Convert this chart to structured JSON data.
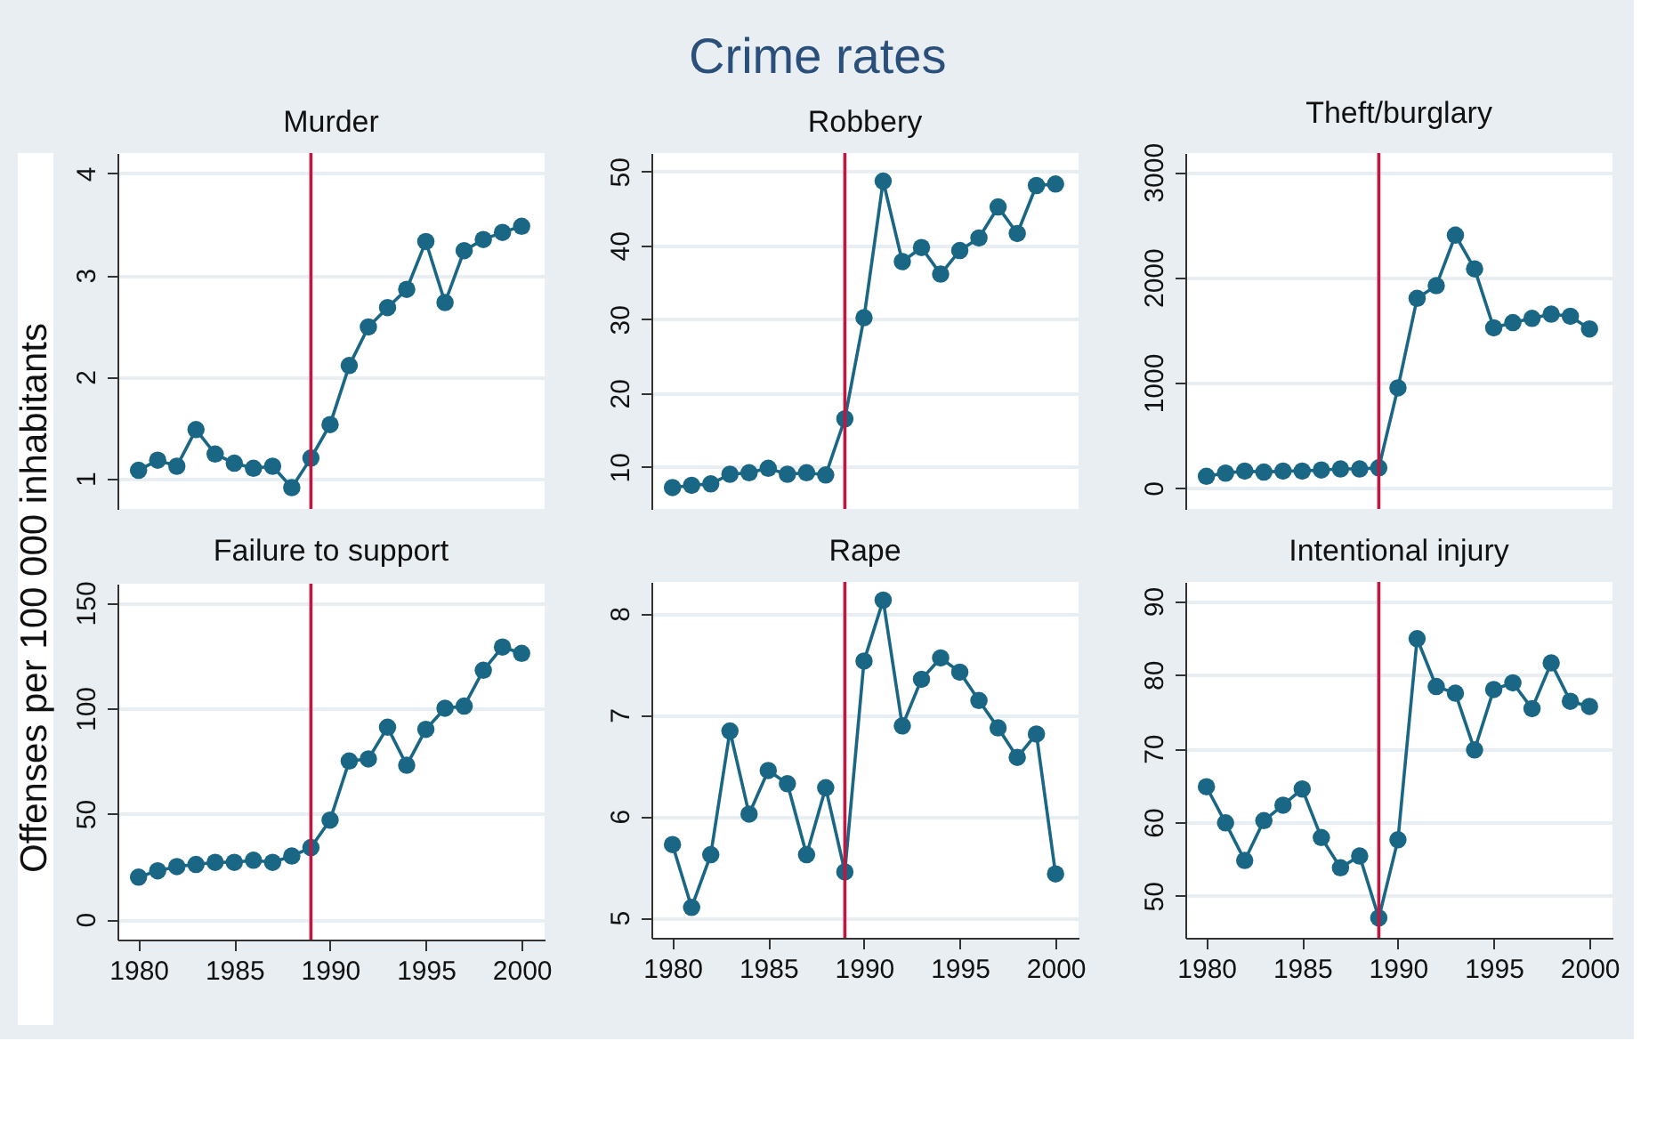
{
  "chart_data": [
    {
      "type": "line",
      "title": "Murder",
      "annotations": [
        "Crime rates"
      ],
      "ylabel": "Offenses per 100 000 inhabitants",
      "x": [
        1980,
        1981,
        1982,
        1983,
        1984,
        1985,
        1986,
        1987,
        1988,
        1989,
        1990,
        1991,
        1992,
        1993,
        1994,
        1995,
        1996,
        1997,
        1998,
        1999,
        2000
      ],
      "series": [
        {
          "color": "#1a6685",
          "values": [
            1.08,
            1.18,
            1.12,
            1.48,
            1.24,
            1.15,
            1.1,
            1.12,
            0.91,
            1.2,
            1.53,
            2.11,
            2.49,
            2.68,
            2.86,
            3.33,
            2.73,
            3.24,
            3.35,
            3.42,
            3.48
          ]
        }
      ],
      "xlim": [
        1978.9,
        2001.2
      ],
      "ylim": [
        0.7,
        4.2
      ],
      "yticks": [
        1,
        2,
        3,
        4
      ],
      "tick_labels": "y",
      "grid": "y",
      "marker": "circle",
      "line_style": "solid",
      "ref_lines": [
        {
          "axis": "x",
          "value": 1989,
          "color": "#c0163f"
        }
      ]
    },
    {
      "type": "line",
      "title": "Robbery",
      "x": [
        1980,
        1981,
        1982,
        1983,
        1984,
        1985,
        1986,
        1987,
        1988,
        1989,
        1990,
        1991,
        1992,
        1993,
        1994,
        1995,
        1996,
        1997,
        1998,
        1999,
        2000
      ],
      "series": [
        {
          "color": "#1a6685",
          "values": [
            7.2,
            7.5,
            7.7,
            9.0,
            9.2,
            9.8,
            9.0,
            9.2,
            8.9,
            16.5,
            30.2,
            48.7,
            37.8,
            39.7,
            36.1,
            39.3,
            41.0,
            45.2,
            41.6,
            48.1,
            48.3
          ]
        }
      ],
      "xlim": [
        1978.9,
        2001.2
      ],
      "ylim": [
        4.3,
        52.5
      ],
      "yticks": [
        10,
        20,
        30,
        40,
        50
      ],
      "tick_labels": "y",
      "grid": "y",
      "marker": "circle",
      "line_style": "solid",
      "ref_lines": [
        {
          "axis": "x",
          "value": 1989,
          "color": "#c0163f"
        }
      ]
    },
    {
      "type": "line",
      "title": "Theft/burglary",
      "x": [
        1980,
        1981,
        1982,
        1983,
        1984,
        1985,
        1986,
        1987,
        1988,
        1989,
        1990,
        1991,
        1992,
        1993,
        1994,
        1995,
        1996,
        1997,
        1998,
        1999,
        2000
      ],
      "series": [
        {
          "color": "#1a6685",
          "values": [
            110,
            140,
            160,
            150,
            160,
            160,
            170,
            180,
            180,
            190,
            950,
            1800,
            1920,
            2400,
            2080,
            1520,
            1570,
            1610,
            1650,
            1630,
            1510
          ]
        }
      ],
      "xlim": [
        1978.9,
        2001.2
      ],
      "ylim": [
        -200,
        3180
      ],
      "yticks": [
        0,
        1000,
        2000,
        3000
      ],
      "tick_labels": "y",
      "grid": "y",
      "marker": "circle",
      "line_style": "solid",
      "ref_lines": [
        {
          "axis": "x",
          "value": 1989,
          "color": "#c0163f"
        }
      ]
    },
    {
      "type": "line",
      "title": "Failure to support",
      "x": [
        1980,
        1981,
        1982,
        1983,
        1984,
        1985,
        1986,
        1987,
        1988,
        1989,
        1990,
        1991,
        1992,
        1993,
        1994,
        1995,
        1996,
        1997,
        1998,
        1999,
        2000
      ],
      "series": [
        {
          "color": "#1a6685",
          "values": [
            20,
            23,
            25,
            26,
            27,
            27,
            28,
            27,
            30,
            34,
            47,
            75,
            76,
            91,
            73,
            90,
            100,
            101,
            118,
            129,
            126
          ]
        }
      ],
      "xlim": [
        1978.9,
        2001.2
      ],
      "xticks": [
        1980,
        1985,
        1990,
        1995,
        2000
      ],
      "ylim": [
        -9.6,
        159
      ],
      "yticks": [
        0,
        50,
        100,
        150
      ],
      "grid": "y",
      "marker": "circle",
      "line_style": "solid",
      "ref_lines": [
        {
          "axis": "x",
          "value": 1989,
          "color": "#c0163f"
        }
      ]
    },
    {
      "type": "line",
      "title": "Rape",
      "x": [
        1980,
        1981,
        1982,
        1983,
        1984,
        1985,
        1986,
        1987,
        1988,
        1989,
        1990,
        1991,
        1992,
        1993,
        1994,
        1995,
        1996,
        1997,
        1998,
        1999,
        2000
      ],
      "series": [
        {
          "color": "#1a6685",
          "values": [
            5.72,
            5.1,
            5.62,
            6.84,
            6.02,
            6.45,
            6.32,
            5.62,
            6.28,
            5.45,
            7.53,
            8.13,
            6.89,
            7.35,
            7.56,
            7.42,
            7.14,
            6.87,
            6.58,
            6.81,
            5.43
          ]
        }
      ],
      "xlim": [
        1978.9,
        2001.2
      ],
      "xticks": [
        1980,
        1985,
        1990,
        1995,
        2000
      ],
      "ylim": [
        4.8,
        8.31
      ],
      "yticks": [
        5,
        6,
        7,
        8
      ],
      "grid": "y",
      "marker": "circle",
      "line_style": "solid",
      "ref_lines": [
        {
          "axis": "x",
          "value": 1989,
          "color": "#c0163f"
        }
      ]
    },
    {
      "type": "line",
      "title": "Intentional injury",
      "x": [
        1980,
        1981,
        1982,
        1983,
        1984,
        1985,
        1986,
        1987,
        1988,
        1989,
        1990,
        1991,
        1992,
        1993,
        1994,
        1995,
        1996,
        1997,
        1998,
        1999,
        2000
      ],
      "series": [
        {
          "color": "#1a6685",
          "values": [
            64.8,
            59.9,
            54.8,
            60.2,
            62.3,
            64.5,
            57.9,
            53.8,
            55.4,
            47.0,
            57.6,
            84.9,
            78.4,
            77.5,
            69.8,
            78.0,
            78.9,
            75.4,
            81.6,
            76.4,
            75.7
          ]
        }
      ],
      "xlim": [
        1978.9,
        2001.2
      ],
      "xticks": [
        1980,
        1985,
        1990,
        1995,
        2000
      ],
      "ylim": [
        44.3,
        92.6
      ],
      "yticks": [
        50,
        60,
        70,
        80,
        90
      ],
      "grid": "y",
      "marker": "circle",
      "line_style": "solid",
      "ref_lines": [
        {
          "axis": "x",
          "value": 1989,
          "color": "#c0163f"
        }
      ]
    }
  ]
}
